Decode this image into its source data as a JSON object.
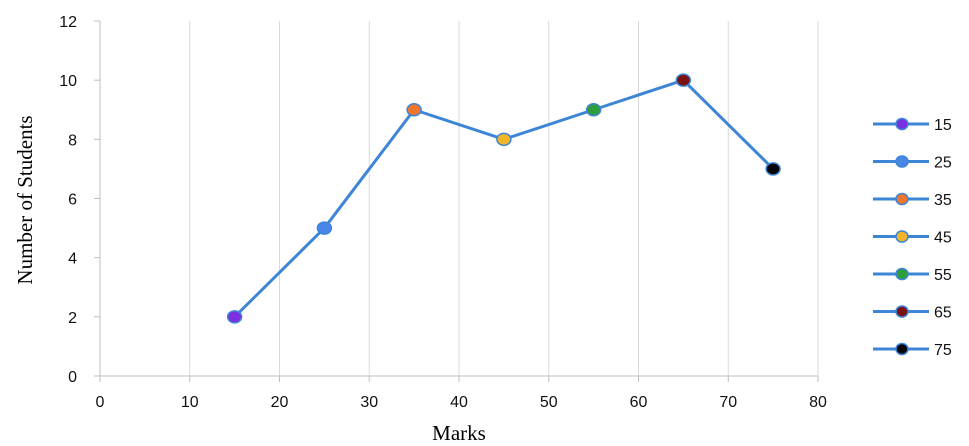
{
  "chart_data": {
    "type": "line",
    "title": "",
    "xlabel": "Marks",
    "ylabel": "Number of Students",
    "xlim": [
      0,
      80
    ],
    "ylim": [
      0,
      12
    ],
    "xticks": [
      0,
      10,
      20,
      30,
      40,
      50,
      60,
      70,
      80
    ],
    "yticks": [
      0,
      2,
      4,
      6,
      8,
      10,
      12
    ],
    "grid": "vertical",
    "legend_position": "right",
    "line_color": "#3D85D6",
    "x": [
      15,
      25,
      35,
      45,
      55,
      65,
      75
    ],
    "y": [
      2,
      5,
      9,
      8,
      9,
      10,
      7
    ],
    "points": [
      {
        "label": "15",
        "x": 15,
        "y": 2,
        "color": "#7B2FE0"
      },
      {
        "label": "25",
        "x": 25,
        "y": 5,
        "color": "#4A86E8"
      },
      {
        "label": "35",
        "x": 35,
        "y": 9,
        "color": "#F0762E"
      },
      {
        "label": "45",
        "x": 45,
        "y": 8,
        "color": "#F2B52A"
      },
      {
        "label": "55",
        "x": 55,
        "y": 9,
        "color": "#2E9E3C"
      },
      {
        "label": "65",
        "x": 65,
        "y": 10,
        "color": "#7A1212"
      },
      {
        "label": "75",
        "x": 75,
        "y": 7,
        "color": "#060606"
      }
    ]
  }
}
